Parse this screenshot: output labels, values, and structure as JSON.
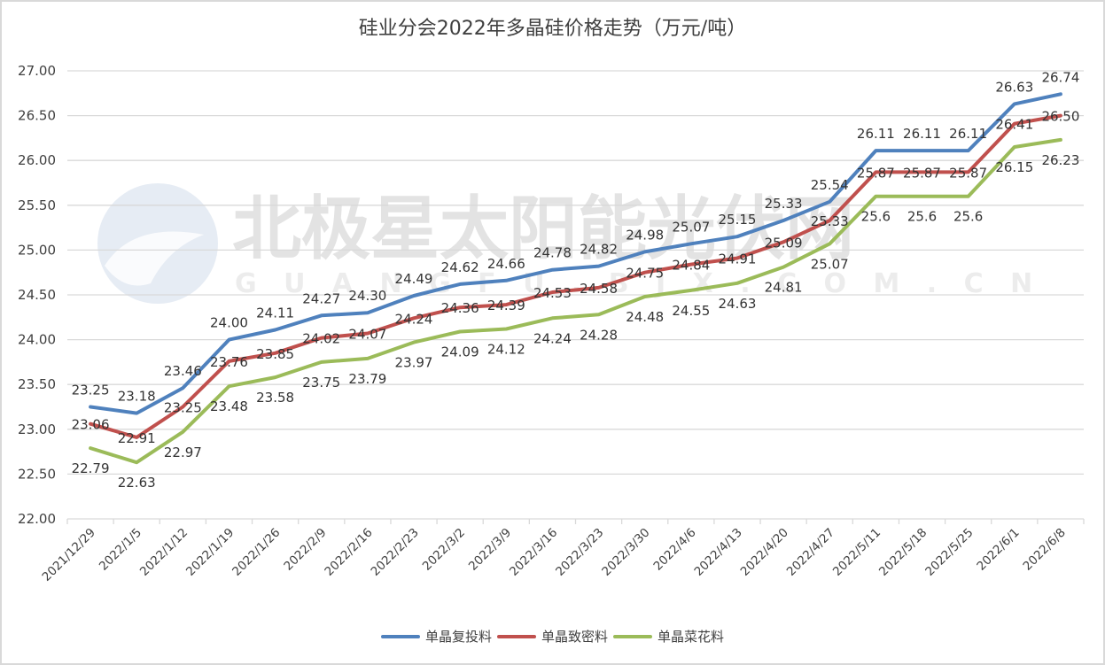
{
  "title": "硅业分会2022年多晶硅价格走势（万元/吨）",
  "watermark": {
    "main": "北极星太阳能光伏网",
    "sub": "G U A N G F U . B J X . C O M . C N"
  },
  "colors": {
    "blue": "#4F81BD",
    "red": "#C0504D",
    "green": "#9BBB59",
    "grid": "#d9d9d9",
    "text": "#404040"
  },
  "legend": [
    {
      "label": "单晶复投料",
      "color": "#4F81BD"
    },
    {
      "label": "单晶致密料",
      "color": "#C0504D"
    },
    {
      "label": "单晶菜花料",
      "color": "#9BBB59"
    }
  ],
  "chart_data": {
    "type": "line",
    "title": "硅业分会2022年多晶硅价格走势（万元/吨）",
    "xlabel": "",
    "ylabel": "",
    "ylim": [
      22.0,
      27.0
    ],
    "yticks": [
      "22.00",
      "22.50",
      "23.00",
      "23.50",
      "24.00",
      "24.50",
      "25.00",
      "25.50",
      "26.00",
      "26.50",
      "27.00"
    ],
    "grid": true,
    "legend_position": "bottom",
    "categories": [
      "2021/12/29",
      "2022/1/5",
      "2022/1/12",
      "2022/1/19",
      "2022/1/26",
      "2022/2/9",
      "2022/2/16",
      "2022/2/23",
      "2022/3/2",
      "2022/3/9",
      "2022/3/16",
      "2022/3/23",
      "2022/3/30",
      "2022/4/6",
      "2022/4/13",
      "2022/4/20",
      "2022/4/27",
      "2022/5/11",
      "2022/5/18",
      "2022/5/25",
      "2022/6/1",
      "2022/6/8"
    ],
    "series": [
      {
        "name": "单晶复投料",
        "color": "#4F81BD",
        "label_pos": "above",
        "values": [
          23.25,
          23.18,
          23.46,
          24.0,
          24.11,
          24.27,
          24.3,
          24.49,
          24.62,
          24.66,
          24.78,
          24.82,
          24.98,
          25.07,
          25.15,
          25.33,
          25.54,
          26.11,
          26.11,
          26.11,
          26.63,
          26.74
        ],
        "labels": [
          "23.25",
          "23.18",
          "23.46",
          "24.00",
          "24.11",
          "24.27",
          "24.30",
          "24.49",
          "24.62",
          "24.66",
          "24.78",
          "24.82",
          "24.98",
          "25.07",
          "25.15",
          "25.33",
          "25.54",
          "26.11",
          "26.11",
          "26.11",
          "26.63",
          "26.74"
        ]
      },
      {
        "name": "单晶致密料",
        "color": "#C0504D",
        "label_pos": "on",
        "values": [
          23.06,
          22.91,
          23.25,
          23.76,
          23.85,
          24.02,
          24.07,
          24.24,
          24.36,
          24.39,
          24.53,
          24.58,
          24.75,
          24.84,
          24.91,
          25.09,
          25.33,
          25.87,
          25.87,
          25.87,
          26.41,
          26.5
        ],
        "labels": [
          "23.06",
          "22.91",
          "23.25",
          "23.76",
          "23.85",
          "24.02",
          "24.07",
          "24.24",
          "24.36",
          "24.39",
          "24.53",
          "24.58",
          "24.75",
          "24.84",
          "24.91",
          "25.09",
          "25.33",
          "25.87",
          "25.87",
          "25.87",
          "26.41",
          "26.50"
        ]
      },
      {
        "name": "单晶菜花料",
        "color": "#9BBB59",
        "label_pos": "below",
        "values": [
          22.79,
          22.63,
          22.97,
          23.48,
          23.58,
          23.75,
          23.79,
          23.97,
          24.09,
          24.12,
          24.24,
          24.28,
          24.48,
          24.55,
          24.63,
          24.81,
          25.07,
          25.6,
          25.6,
          25.6,
          26.15,
          26.23
        ],
        "labels": [
          "22.79",
          "22.63",
          "22.97",
          "23.48",
          "23.58",
          "23.75",
          "23.79",
          "23.97",
          "24.09",
          "24.12",
          "24.24",
          "24.28",
          "24.48",
          "24.55",
          "24.63",
          "24.81",
          "25.07",
          "25.6",
          "25.6",
          "25.6",
          "26.15",
          "26.23"
        ]
      }
    ]
  }
}
